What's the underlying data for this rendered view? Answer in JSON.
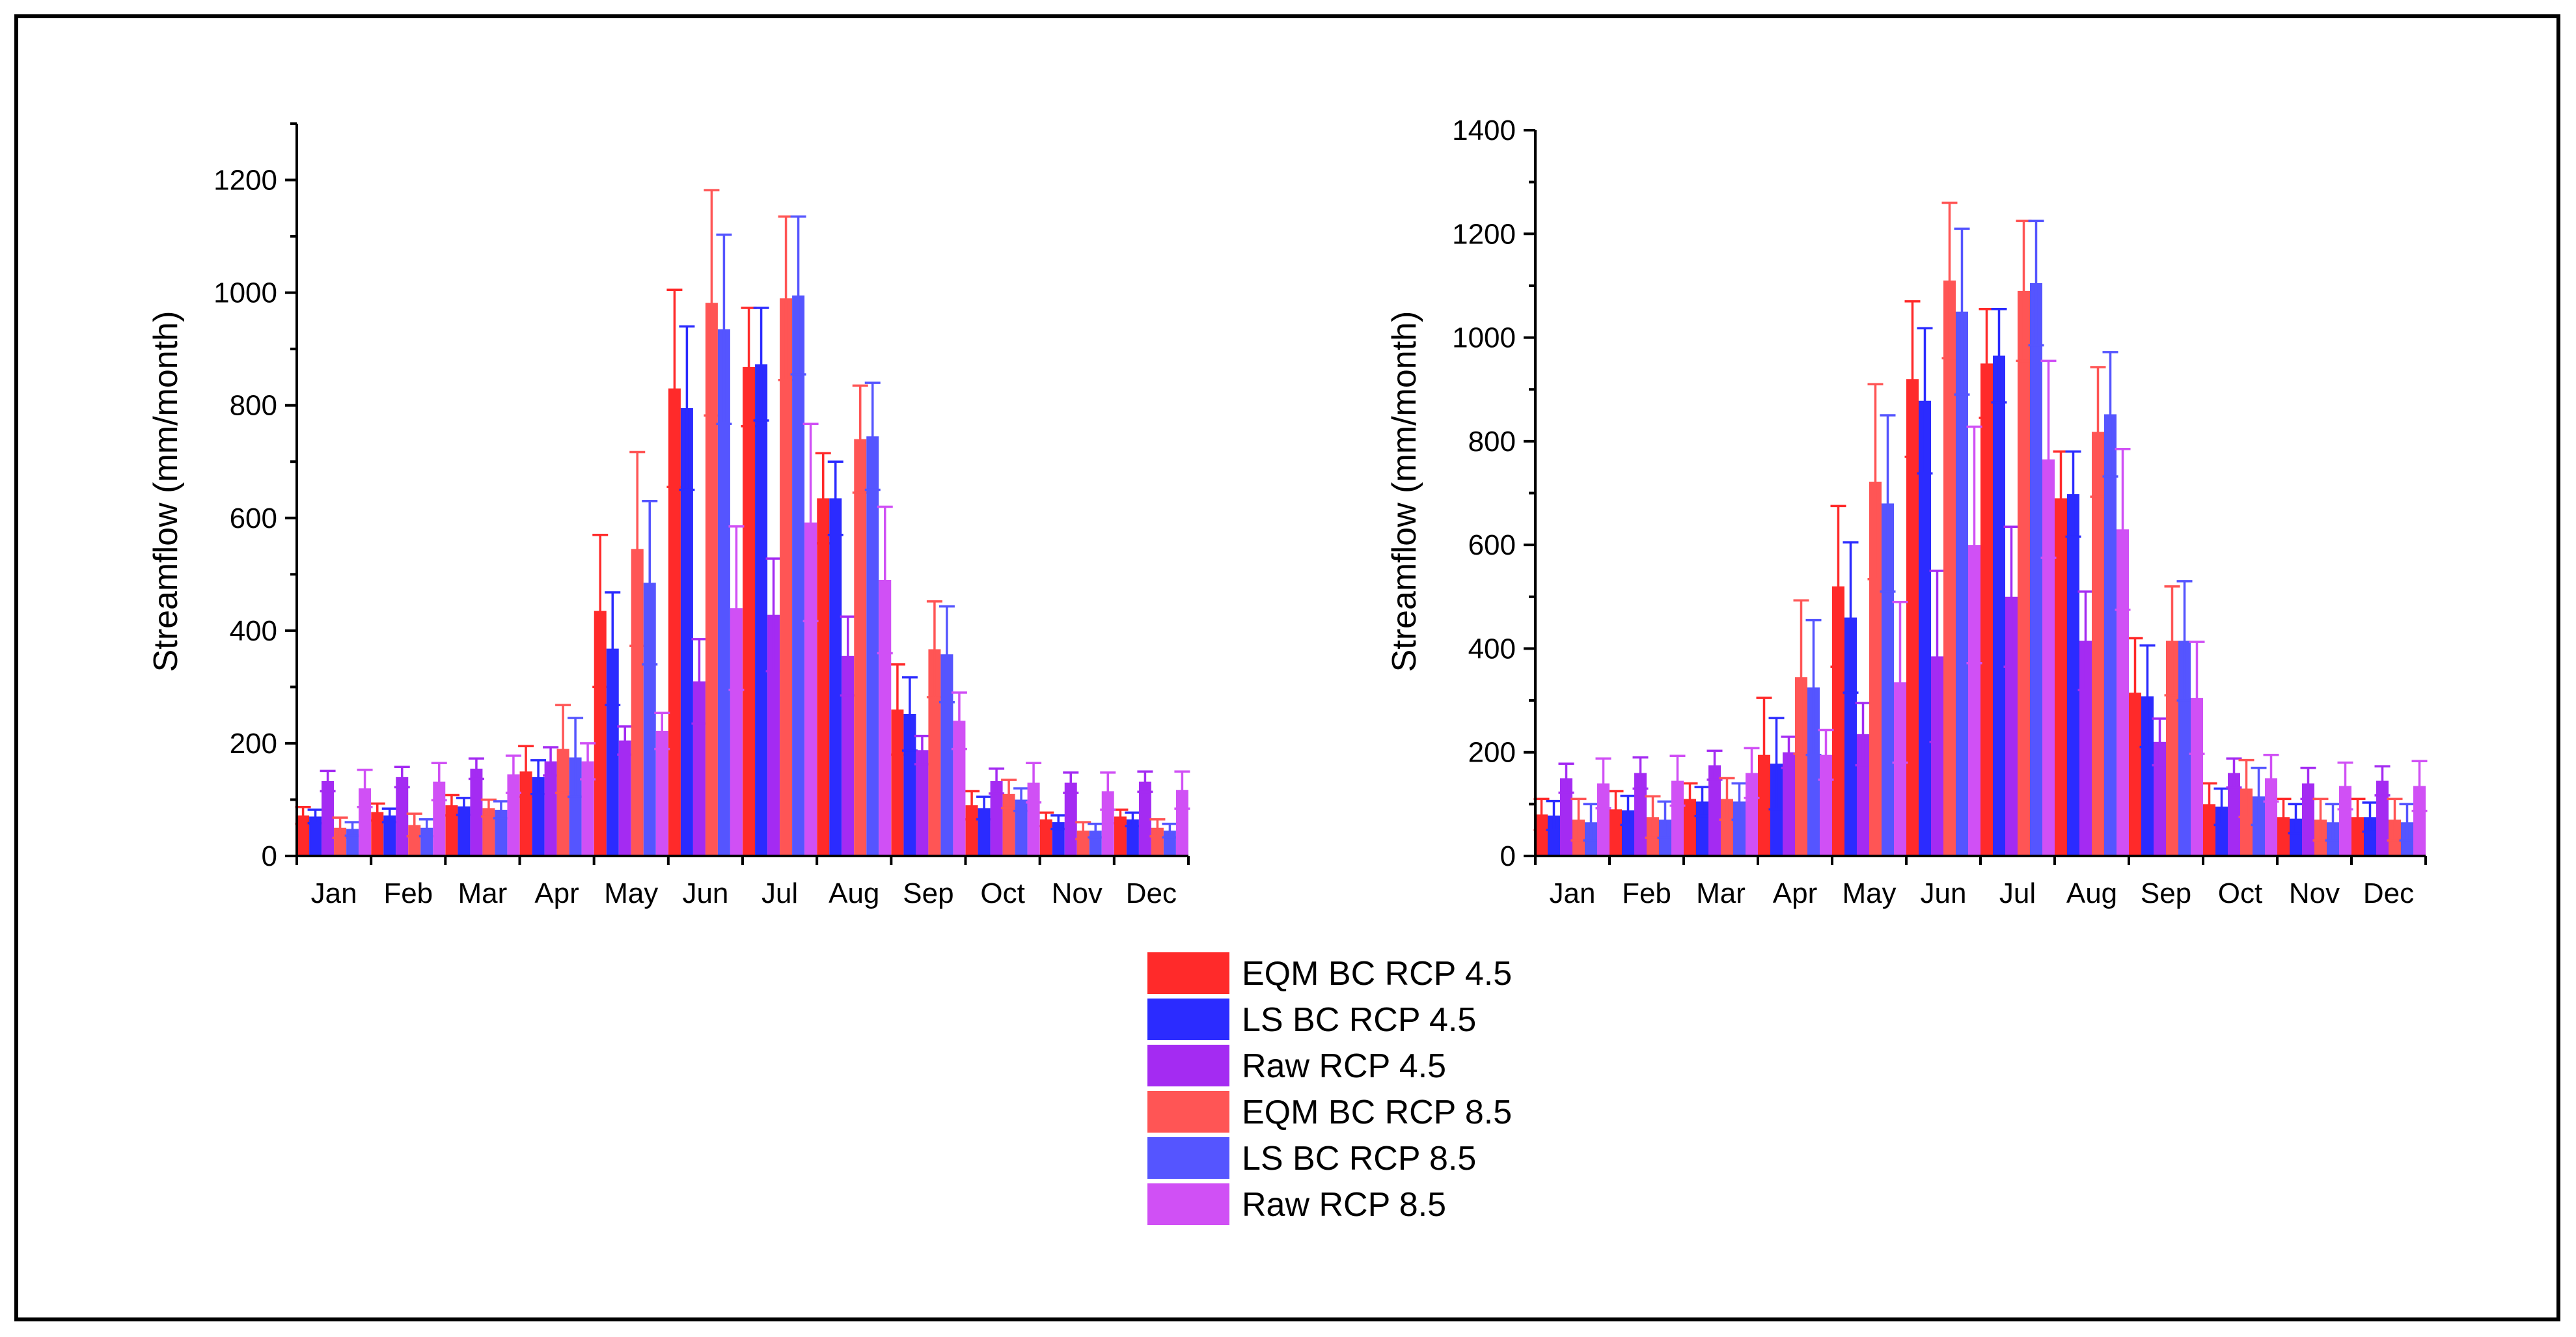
{
  "colors": {
    "EQM BC RCP 4.5": "#ff2a2a",
    "LS BC RCP 4.5": "#2b2bff",
    "Raw RCP 4.5": "#a42bf2",
    "EQM BC RCP 8.5": "#ff5555",
    "LS BC RCP 8.5": "#5555ff",
    "Raw RCP 8.5": "#d050f5"
  },
  "legend": [
    "EQM BC RCP 4.5",
    "LS BC RCP 4.5",
    "Raw RCP 4.5",
    "EQM BC RCP 8.5",
    "LS BC RCP 8.5",
    "Raw RCP 8.5"
  ],
  "chart_data": [
    {
      "type": "bar",
      "title": "",
      "xlabel": "",
      "ylabel": "Streamflow (mm/month)",
      "ylim": [
        0,
        1300
      ],
      "yticks": [
        0,
        200,
        400,
        600,
        800,
        1000,
        1200
      ],
      "categories": [
        "Jan",
        "Feb",
        "Mar",
        "Apr",
        "May",
        "Jun",
        "Jul",
        "Aug",
        "Sep",
        "Oct",
        "Nov",
        "Dec"
      ],
      "series": [
        {
          "name": "EQM BC RCP 4.5",
          "values": [
            72,
            78,
            90,
            150,
            435,
            830,
            868,
            635,
            260,
            90,
            65,
            70
          ],
          "errors": [
            15,
            15,
            18,
            45,
            135,
            175,
            105,
            80,
            80,
            25,
            12,
            12
          ]
        },
        {
          "name": "LS BC RCP 4.5",
          "values": [
            70,
            72,
            88,
            140,
            368,
            795,
            873,
            635,
            252,
            85,
            60,
            65
          ],
          "errors": [
            12,
            12,
            15,
            30,
            100,
            145,
            100,
            65,
            65,
            20,
            12,
            12
          ]
        },
        {
          "name": "Raw RCP 4.5",
          "values": [
            133,
            140,
            155,
            168,
            205,
            310,
            428,
            355,
            188,
            133,
            130,
            132
          ],
          "errors": [
            18,
            18,
            18,
            25,
            25,
            75,
            100,
            70,
            25,
            22,
            18,
            18
          ]
        },
        {
          "name": "EQM BC RCP 8.5",
          "values": [
            50,
            55,
            85,
            190,
            545,
            982,
            990,
            740,
            367,
            110,
            45,
            50
          ],
          "errors": [
            18,
            20,
            15,
            78,
            172,
            200,
            145,
            95,
            85,
            25,
            15,
            15
          ]
        },
        {
          "name": "LS BC RCP 8.5",
          "values": [
            48,
            50,
            82,
            175,
            485,
            935,
            995,
            745,
            358,
            100,
            45,
            45
          ],
          "errors": [
            12,
            15,
            15,
            70,
            145,
            168,
            140,
            95,
            85,
            20,
            12,
            12
          ]
        },
        {
          "name": "Raw RCP 8.5",
          "values": [
            120,
            132,
            145,
            168,
            222,
            440,
            592,
            490,
            240,
            130,
            115,
            117
          ],
          "errors": [
            33,
            33,
            33,
            32,
            32,
            145,
            175,
            130,
            50,
            35,
            33,
            33
          ]
        }
      ]
    },
    {
      "type": "bar",
      "title": "",
      "xlabel": "",
      "ylabel": "Streamflow (mm/month)",
      "ylim": [
        0,
        1400
      ],
      "yticks": [
        0,
        200,
        400,
        600,
        800,
        1000,
        1200,
        1400
      ],
      "categories": [
        "Jan",
        "Feb",
        "Mar",
        "Apr",
        "May",
        "Jun",
        "Jul",
        "Aug",
        "Sep",
        "Oct",
        "Nov",
        "Dec"
      ],
      "series": [
        {
          "name": "EQM BC RCP 4.5",
          "values": [
            80,
            90,
            110,
            195,
            520,
            920,
            950,
            690,
            315,
            100,
            75,
            75
          ],
          "errors": [
            30,
            35,
            30,
            110,
            155,
            150,
            105,
            90,
            105,
            40,
            35,
            35
          ]
        },
        {
          "name": "LS BC RCP 4.5",
          "values": [
            78,
            88,
            105,
            178,
            460,
            878,
            965,
            698,
            308,
            95,
            72,
            75
          ],
          "errors": [
            28,
            28,
            28,
            88,
            145,
            140,
            90,
            82,
            98,
            35,
            28,
            28
          ]
        },
        {
          "name": "Raw RCP 4.5",
          "values": [
            150,
            160,
            175,
            200,
            235,
            385,
            500,
            415,
            220,
            160,
            140,
            145
          ],
          "errors": [
            28,
            30,
            28,
            30,
            60,
            165,
            135,
            95,
            45,
            28,
            30,
            28
          ]
        },
        {
          "name": "EQM BC RCP 8.5",
          "values": [
            70,
            75,
            110,
            345,
            722,
            1110,
            1090,
            818,
            415,
            130,
            70,
            70
          ],
          "errors": [
            40,
            40,
            40,
            148,
            188,
            150,
            135,
            125,
            105,
            55,
            40,
            40
          ]
        },
        {
          "name": "LS BC RCP 8.5",
          "values": [
            65,
            70,
            105,
            325,
            680,
            1050,
            1105,
            852,
            415,
            115,
            65,
            65
          ],
          "errors": [
            35,
            35,
            35,
            130,
            170,
            160,
            120,
            120,
            115,
            55,
            35,
            35
          ]
        },
        {
          "name": "Raw RCP 8.5",
          "values": [
            140,
            145,
            160,
            195,
            335,
            600,
            765,
            630,
            305,
            150,
            135,
            135
          ],
          "errors": [
            48,
            48,
            48,
            48,
            155,
            228,
            190,
            155,
            108,
            45,
            45,
            48
          ]
        }
      ]
    }
  ]
}
